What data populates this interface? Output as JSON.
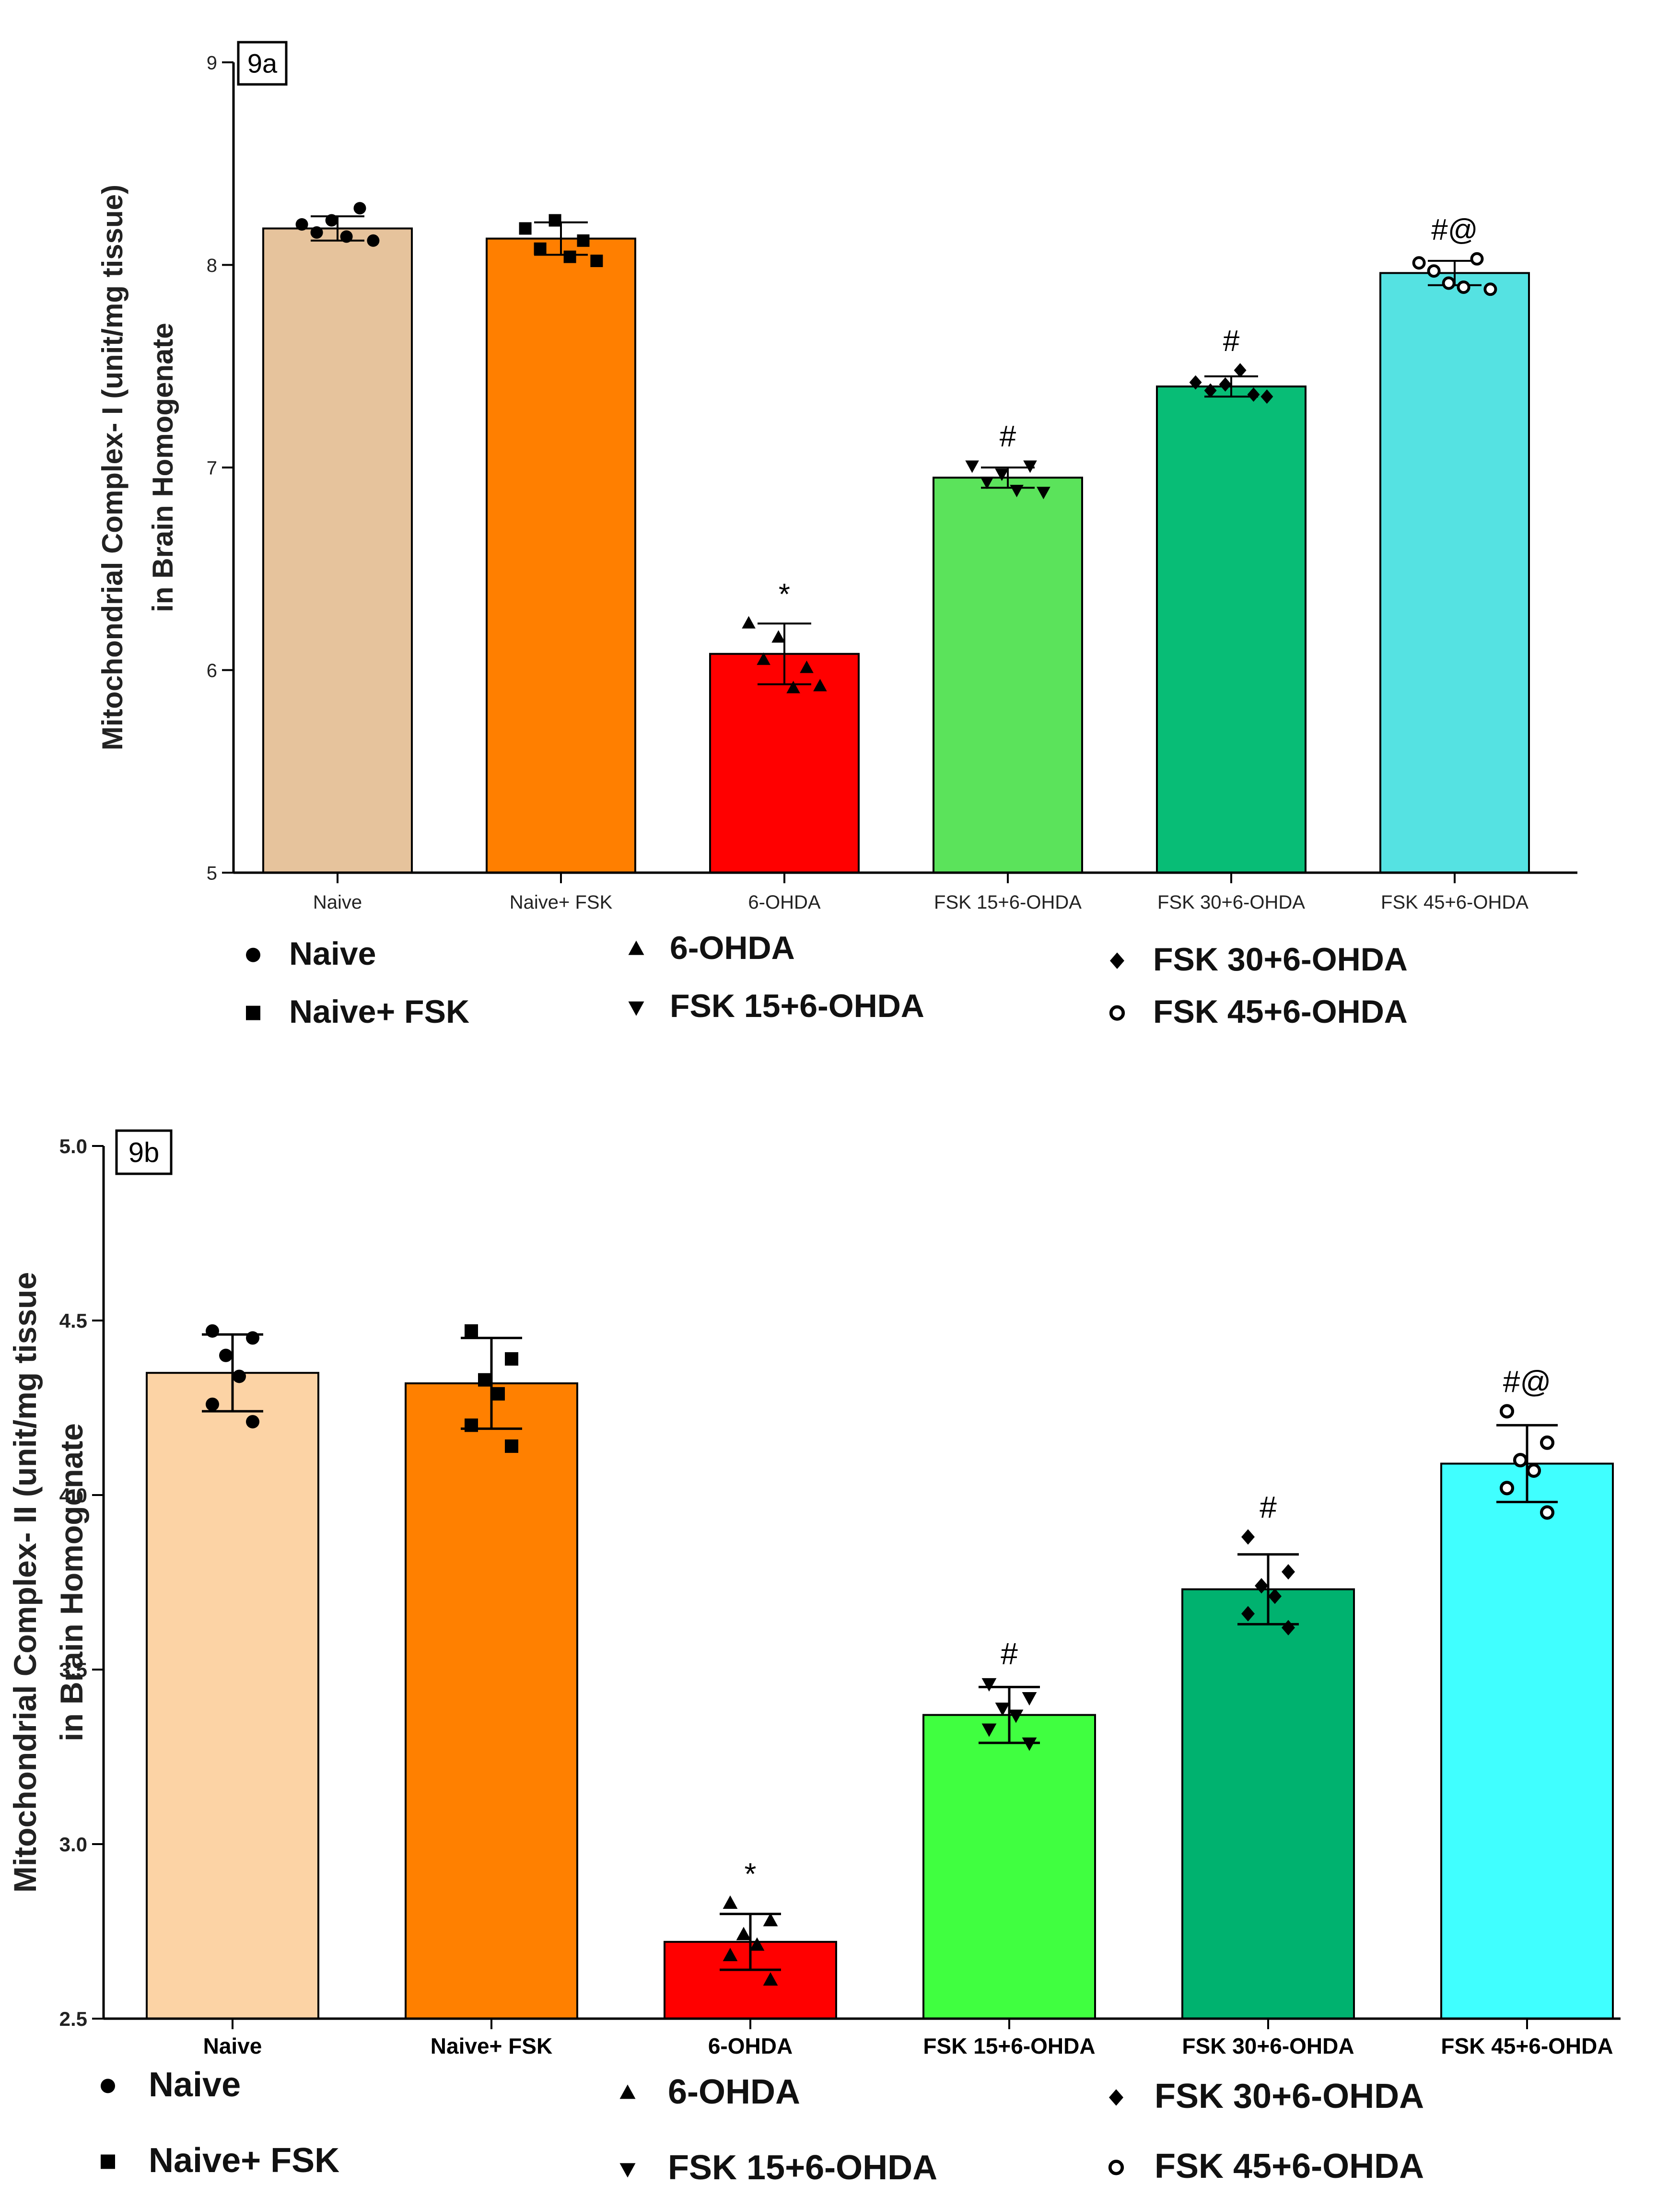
{
  "chart_data": [
    {
      "id": "9a",
      "type": "bar",
      "panel_label": "9a",
      "ylabel_line1": "Mitochondrial Complex- I (unit/mg tissue)",
      "ylabel_line2": "in Brain Homogenate",
      "xlabel": "",
      "ylim": [
        5,
        9
      ],
      "yticks": [
        "5",
        "6",
        "7",
        "8",
        "9"
      ],
      "categories": [
        "Naive",
        "Naive+ FSK",
        "6-OHDA",
        "FSK 15+6-OHDA",
        "FSK 30+6-OHDA",
        "FSK 45+6-OHDA"
      ],
      "values": [
        8.18,
        8.13,
        6.08,
        6.95,
        7.4,
        7.96
      ],
      "errors": [
        0.06,
        0.08,
        0.15,
        0.05,
        0.05,
        0.06
      ],
      "colors": [
        "#E6C39C",
        "#FF7F00",
        "#FF0000",
        "#5BE35B",
        "#08BD76",
        "#55E2E2"
      ],
      "markers": [
        "circle",
        "square",
        "triangle-up",
        "triangle-down",
        "diamond",
        "circle-open"
      ],
      "points": [
        [
          8.2,
          8.16,
          8.22,
          8.14,
          8.28,
          8.12
        ],
        [
          8.18,
          8.08,
          8.22,
          8.04,
          8.12,
          8.02
        ],
        [
          6.23,
          6.05,
          6.16,
          5.91,
          6.01,
          5.92
        ],
        [
          7.01,
          6.93,
          6.97,
          6.89,
          7.01,
          6.88
        ],
        [
          7.42,
          7.38,
          7.41,
          7.48,
          7.36,
          7.35
        ],
        [
          8.01,
          7.97,
          7.91,
          7.89,
          8.03,
          7.88
        ]
      ],
      "annotations": [
        "",
        "",
        "*",
        "#",
        "#",
        "#@"
      ],
      "legend": {
        "entries": [
          "Naive",
          "Naive+ FSK",
          "6-OHDA",
          "FSK 15+6-OHDA",
          "FSK 30+6-OHDA",
          "FSK 45+6-OHDA"
        ],
        "placement": "bottom"
      }
    },
    {
      "id": "9b",
      "type": "bar",
      "panel_label": "9b",
      "ylabel_line1": "Mitochondrial Complex- II (unit/mg tissue",
      "ylabel_line2": "in Brain Homogenate",
      "xlabel": "",
      "ylim": [
        2.5,
        5.0
      ],
      "yticks": [
        "2.5",
        "3.0",
        "3.5",
        "4.0",
        "4.5",
        "5.0"
      ],
      "categories": [
        "Naive",
        "Naive+ FSK",
        "6-OHDA",
        "FSK 15+6-OHDA",
        "FSK 30+6-OHDA",
        "FSK 45+6-OHDA"
      ],
      "values": [
        4.35,
        4.32,
        2.72,
        3.37,
        3.73,
        4.09
      ],
      "errors": [
        0.11,
        0.13,
        0.08,
        0.08,
        0.1,
        0.11
      ],
      "colors": [
        "#FCD3A5",
        "#FF8000",
        "#FF0000",
        "#40FF40",
        "#00B26F",
        "#40FFFF"
      ],
      "markers": [
        "circle",
        "square",
        "triangle-up",
        "triangle-down",
        "diamond",
        "circle-open"
      ],
      "points": [
        [
          4.47,
          4.45,
          4.4,
          4.34,
          4.26,
          4.21
        ],
        [
          4.47,
          4.39,
          4.33,
          4.29,
          4.2,
          4.14
        ],
        [
          2.83,
          2.78,
          2.74,
          2.71,
          2.68,
          2.61
        ],
        [
          3.46,
          3.42,
          3.39,
          3.37,
          3.33,
          3.29
        ],
        [
          3.88,
          3.78,
          3.74,
          3.71,
          3.66,
          3.62
        ],
        [
          4.24,
          4.15,
          4.1,
          4.07,
          4.02,
          3.95
        ]
      ],
      "annotations": [
        "",
        "",
        "*",
        "#",
        "#",
        "#@"
      ],
      "legend": {
        "entries": [
          "Naive",
          "Naive+ FSK",
          "6-OHDA",
          "FSK 15+6-OHDA",
          "FSK 30+6-OHDA",
          "FSK 45+6-OHDA"
        ],
        "placement": "bottom"
      }
    }
  ]
}
